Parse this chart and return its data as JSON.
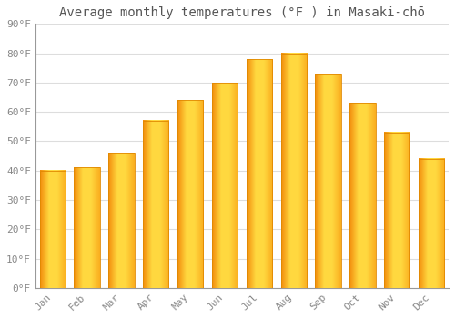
{
  "title": "Average monthly temperatures (°F ) in Masaki-chō",
  "months": [
    "Jan",
    "Feb",
    "Mar",
    "Apr",
    "May",
    "Jun",
    "Jul",
    "Aug",
    "Sep",
    "Oct",
    "Nov",
    "Dec"
  ],
  "values": [
    40,
    41,
    46,
    57,
    64,
    70,
    78,
    80,
    73,
    63,
    53,
    44
  ],
  "bar_color_main": "#FFA500",
  "bar_color_light": "#FFD040",
  "bar_color_edge": "#E08800",
  "background_color": "#FFFFFF",
  "grid_color": "#DDDDDD",
  "ylim": [
    0,
    90
  ],
  "yticks": [
    0,
    10,
    20,
    30,
    40,
    50,
    60,
    70,
    80,
    90
  ],
  "ytick_labels": [
    "0°F",
    "10°F",
    "20°F",
    "30°F",
    "40°F",
    "50°F",
    "60°F",
    "70°F",
    "80°F",
    "90°F"
  ],
  "title_fontsize": 10,
  "tick_fontsize": 8,
  "title_color": "#555555",
  "tick_color": "#888888",
  "font_family": "monospace",
  "bar_width": 0.75
}
